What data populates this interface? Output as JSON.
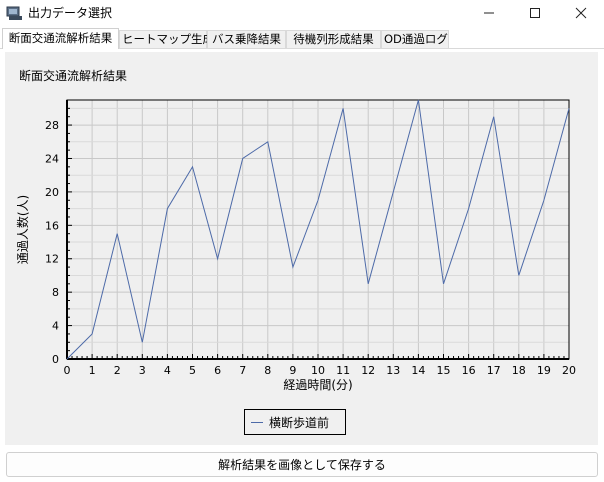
{
  "window": {
    "title": "出力データ選択",
    "minimize_glyph": "—",
    "maximize_glyph": "☐",
    "close_glyph": "✕"
  },
  "tabs": [
    {
      "label": "断面交通流解析結果",
      "active": true
    },
    {
      "label": "ヒートマップ生成",
      "active": false
    },
    {
      "label": "バス乗降結果",
      "active": false
    },
    {
      "label": "待機列形成結果",
      "active": false
    },
    {
      "label": "OD通過ログ",
      "active": false
    }
  ],
  "panel": {
    "title": "断面交通流解析結果"
  },
  "chart_data": {
    "type": "line",
    "title": "断面交通流解析結果",
    "xlabel": "経過時間(分)",
    "ylabel": "通過人数(人)",
    "xlim": [
      0,
      20
    ],
    "ylim": [
      0,
      31
    ],
    "x_ticks": [
      0,
      1,
      2,
      3,
      4,
      5,
      6,
      7,
      8,
      9,
      10,
      11,
      12,
      13,
      14,
      15,
      16,
      17,
      18,
      19,
      20
    ],
    "y_ticks": [
      0,
      4,
      8,
      12,
      16,
      20,
      24,
      28
    ],
    "grid": true,
    "legend_position": "bottom-center",
    "series": [
      {
        "name": "横断歩道前",
        "color": "#4d6aa8",
        "x": [
          0,
          1,
          2,
          3,
          4,
          5,
          6,
          7,
          8,
          9,
          10,
          11,
          12,
          13,
          14,
          15,
          16,
          17,
          18,
          19,
          20
        ],
        "y": [
          0,
          3,
          15,
          2,
          18,
          23,
          12,
          24,
          26,
          11,
          19,
          30,
          9,
          20,
          31,
          9,
          18,
          29,
          10,
          19,
          30
        ]
      }
    ]
  },
  "save_button": {
    "label": "解析結果を画像として保存する"
  }
}
